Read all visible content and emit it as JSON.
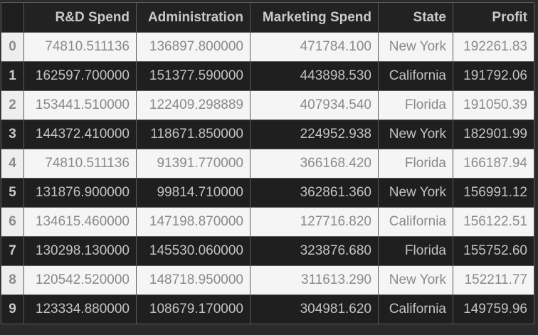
{
  "table": {
    "columns": [
      "R&D Spend",
      "Administration",
      "Marketing Spend",
      "State",
      "Profit"
    ],
    "rows": [
      {
        "index": "0",
        "cells": [
          "74810.511136",
          "136897.800000",
          "471784.100",
          "New York",
          "192261.83"
        ]
      },
      {
        "index": "1",
        "cells": [
          "162597.700000",
          "151377.590000",
          "443898.530",
          "California",
          "191792.06"
        ]
      },
      {
        "index": "2",
        "cells": [
          "153441.510000",
          "122409.298889",
          "407934.540",
          "Florida",
          "191050.39"
        ]
      },
      {
        "index": "3",
        "cells": [
          "144372.410000",
          "118671.850000",
          "224952.938",
          "New York",
          "182901.99"
        ]
      },
      {
        "index": "4",
        "cells": [
          "74810.511136",
          "91391.770000",
          "366168.420",
          "Florida",
          "166187.94"
        ]
      },
      {
        "index": "5",
        "cells": [
          "131876.900000",
          "99814.710000",
          "362861.360",
          "New York",
          "156991.12"
        ]
      },
      {
        "index": "6",
        "cells": [
          "134615.460000",
          "147198.870000",
          "127716.820",
          "California",
          "156122.51"
        ]
      },
      {
        "index": "7",
        "cells": [
          "130298.130000",
          "145530.060000",
          "323876.680",
          "Florida",
          "155752.60"
        ]
      },
      {
        "index": "8",
        "cells": [
          "120542.520000",
          "148718.950000",
          "311613.290",
          "New York",
          "152211.77"
        ]
      },
      {
        "index": "9",
        "cells": [
          "123334.880000",
          "108679.170000",
          "304981.620",
          "California",
          "149759.96"
        ]
      }
    ]
  }
}
